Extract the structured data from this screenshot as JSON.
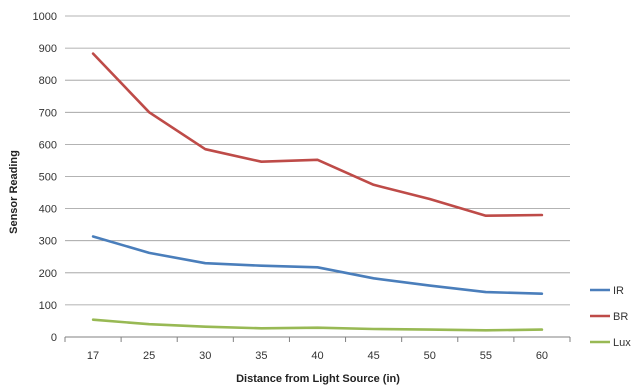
{
  "chart_data": {
    "type": "line",
    "title": "",
    "xlabel": "Distance from Light Source (in)",
    "ylabel": "Sensor Reading",
    "categories": [
      "17",
      "25",
      "30",
      "35",
      "40",
      "45",
      "50",
      "55",
      "60"
    ],
    "ylim": [
      0,
      1000
    ],
    "yticks": [
      "0",
      "100",
      "200",
      "300",
      "400",
      "500",
      "600",
      "700",
      "800",
      "900",
      "1000"
    ],
    "grid": true,
    "legend_position": "right",
    "series": [
      {
        "name": "IR",
        "color": "#4a7ebb",
        "values": [
          313,
          262,
          230,
          222,
          217,
          183,
          160,
          140,
          135
        ]
      },
      {
        "name": "BR",
        "color": "#be4b48",
        "values": [
          883,
          700,
          585,
          546,
          552,
          474,
          430,
          378,
          380
        ]
      },
      {
        "name": "Lux",
        "color": "#98b954",
        "values": [
          54,
          40,
          32,
          27,
          29,
          25,
          23,
          21,
          23
        ]
      }
    ]
  }
}
